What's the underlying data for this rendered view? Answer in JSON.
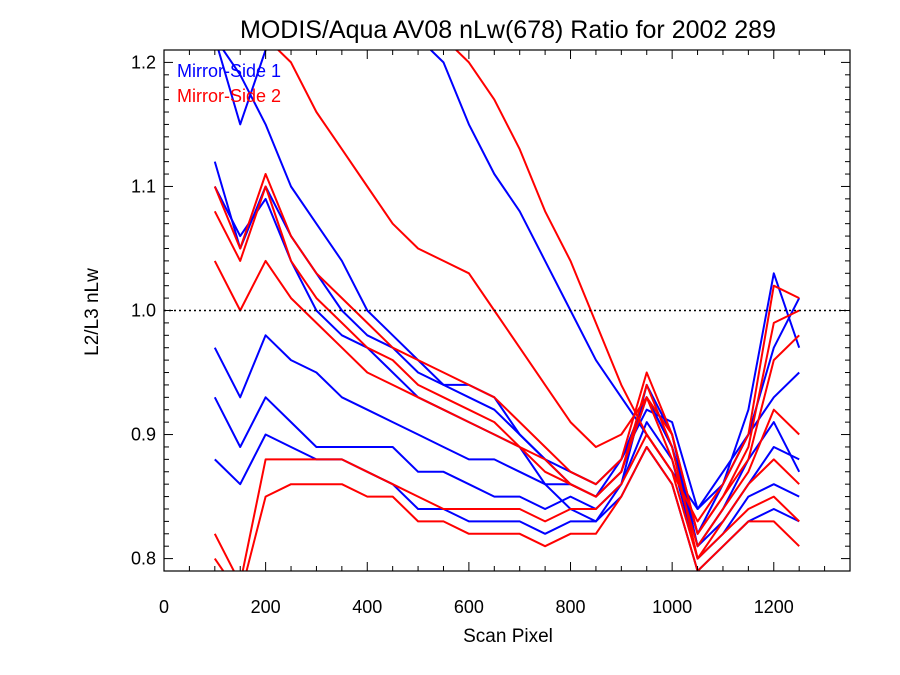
{
  "chart_data": {
    "type": "line",
    "title": "MODIS/Aqua AV08 nLw(678) Ratio for 2002 289",
    "xlabel": "Scan Pixel",
    "ylabel": "L2/L3 nLw",
    "xlim": [
      0,
      1350
    ],
    "ylim": [
      0.79,
      1.21
    ],
    "xticks": [
      0,
      200,
      400,
      600,
      800,
      1000,
      1200
    ],
    "yticks": [
      0.8,
      0.9,
      1.0,
      1.1,
      1.2
    ],
    "xtick_labels": [
      "0",
      "200",
      "400",
      "600",
      "800",
      "1000",
      "1200"
    ],
    "ytick_labels": [
      "0.8",
      "0.9",
      "1.0",
      "1.1",
      "1.2"
    ],
    "reference_line": 1.0,
    "grid": false,
    "legend_position": "top-left",
    "series": [
      {
        "name": "Mirror-Side 1",
        "color": "#0000ff",
        "lines": [
          {
            "x": [
              100,
              150,
              200,
              250,
              300,
              350,
              400,
              450,
              500,
              550,
              600,
              650,
              700,
              750,
              800,
              850,
              900,
              950,
              1000,
              1050,
              1100,
              1150,
              1200,
              1250
            ],
            "y": [
              1.22,
              1.15,
              1.21,
              1.22,
              1.22,
              1.22,
              1.22,
              1.22,
              1.22,
              1.2,
              1.15,
              1.11,
              1.08,
              1.04,
              1.0,
              0.96,
              0.93,
              0.9,
              0.87,
              0.84,
              0.86,
              0.92,
              1.03,
              0.97
            ]
          },
          {
            "x": [
              100,
              150,
              200,
              250,
              300,
              350,
              400,
              450,
              500,
              550,
              600,
              650,
              700,
              750,
              800,
              850,
              900,
              950,
              1000,
              1050,
              1100,
              1150,
              1200,
              1250
            ],
            "y": [
              1.22,
              1.19,
              1.15,
              1.1,
              1.07,
              1.04,
              1.0,
              0.98,
              0.96,
              0.94,
              0.93,
              0.92,
              0.9,
              0.88,
              0.87,
              0.86,
              0.88,
              0.92,
              0.91,
              0.84,
              0.87,
              0.9,
              0.97,
              1.01
            ]
          },
          {
            "x": [
              100,
              150,
              200,
              250,
              300,
              350,
              400,
              450,
              500,
              550,
              600,
              650,
              700,
              750,
              800,
              850,
              900,
              950,
              1000,
              1050,
              1100,
              1150,
              1200,
              1250
            ],
            "y": [
              1.12,
              1.05,
              1.1,
              1.06,
              1.03,
              1.0,
              0.98,
              0.97,
              0.95,
              0.94,
              0.94,
              0.93,
              0.9,
              0.88,
              0.86,
              0.85,
              0.88,
              0.93,
              0.89,
              0.82,
              0.86,
              0.9,
              0.93,
              0.95
            ]
          },
          {
            "x": [
              100,
              150,
              200,
              250,
              300,
              350,
              400,
              450,
              500,
              550,
              600,
              650,
              700,
              750,
              800,
              850,
              900,
              950,
              1000,
              1050,
              1100,
              1150,
              1200,
              1250
            ],
            "y": [
              1.1,
              1.06,
              1.09,
              1.04,
              1.0,
              0.98,
              0.97,
              0.95,
              0.93,
              0.92,
              0.91,
              0.9,
              0.89,
              0.86,
              0.84,
              0.83,
              0.86,
              0.94,
              0.9,
              0.81,
              0.84,
              0.88,
              0.91,
              0.87
            ]
          },
          {
            "x": [
              100,
              150,
              200,
              250,
              300,
              350,
              400,
              450,
              500,
              550,
              600,
              650,
              700,
              750,
              800,
              850,
              900,
              950,
              1000,
              1050,
              1100,
              1150,
              1200,
              1250
            ],
            "y": [
              0.97,
              0.93,
              0.98,
              0.96,
              0.95,
              0.93,
              0.92,
              0.91,
              0.9,
              0.89,
              0.88,
              0.88,
              0.87,
              0.86,
              0.86,
              0.85,
              0.87,
              0.93,
              0.89,
              0.81,
              0.83,
              0.86,
              0.89,
              0.88
            ]
          },
          {
            "x": [
              100,
              150,
              200,
              250,
              300,
              350,
              400,
              450,
              500,
              550,
              600,
              650,
              700,
              750,
              800,
              850,
              900,
              950,
              1000,
              1050,
              1100,
              1150,
              1200,
              1250
            ],
            "y": [
              0.93,
              0.89,
              0.93,
              0.91,
              0.89,
              0.89,
              0.89,
              0.89,
              0.87,
              0.87,
              0.86,
              0.85,
              0.85,
              0.84,
              0.85,
              0.84,
              0.86,
              0.91,
              0.88,
              0.8,
              0.82,
              0.85,
              0.86,
              0.85
            ]
          },
          {
            "x": [
              100,
              150,
              200,
              250,
              300,
              350,
              400,
              450,
              500,
              550,
              600,
              650,
              700,
              750,
              800,
              850,
              900,
              950,
              1000,
              1050,
              1100,
              1150,
              1200,
              1250
            ],
            "y": [
              0.88,
              0.86,
              0.9,
              0.89,
              0.88,
              0.88,
              0.87,
              0.86,
              0.84,
              0.84,
              0.83,
              0.83,
              0.83,
              0.82,
              0.83,
              0.83,
              0.85,
              0.89,
              0.86,
              0.79,
              0.81,
              0.83,
              0.84,
              0.83
            ]
          }
        ]
      },
      {
        "name": "Mirror-Side 2",
        "color": "#ff0000",
        "lines": [
          {
            "x": [
              100,
              150,
              200,
              250,
              300,
              350,
              400,
              450,
              500,
              550,
              600,
              650,
              700,
              750,
              800,
              850,
              900,
              950,
              1000,
              1050,
              1100,
              1150,
              1200,
              1250
            ],
            "y": [
              1.22,
              1.22,
              1.22,
              1.22,
              1.22,
              1.22,
              1.22,
              1.22,
              1.22,
              1.22,
              1.2,
              1.17,
              1.13,
              1.08,
              1.04,
              0.99,
              0.94,
              0.9,
              0.87,
              0.83,
              0.86,
              0.9,
              1.02,
              1.01
            ]
          },
          {
            "x": [
              100,
              150,
              200,
              250,
              300,
              350,
              400,
              450,
              500,
              550,
              600,
              650,
              700,
              750,
              800,
              850,
              900,
              950,
              1000,
              1050,
              1100,
              1150,
              1200,
              1250
            ],
            "y": [
              1.22,
              1.22,
              1.22,
              1.2,
              1.16,
              1.13,
              1.1,
              1.07,
              1.05,
              1.04,
              1.03,
              1.0,
              0.97,
              0.94,
              0.91,
              0.89,
              0.9,
              0.93,
              0.9,
              0.82,
              0.85,
              0.89,
              0.99,
              1.0
            ]
          },
          {
            "x": [
              100,
              150,
              200,
              250,
              300,
              350,
              400,
              450,
              500,
              550,
              600,
              650,
              700,
              750,
              800,
              850,
              900,
              950,
              1000,
              1050,
              1100,
              1150,
              1200,
              1250
            ],
            "y": [
              1.1,
              1.05,
              1.11,
              1.06,
              1.03,
              1.01,
              0.99,
              0.97,
              0.96,
              0.95,
              0.94,
              0.93,
              0.91,
              0.89,
              0.87,
              0.86,
              0.88,
              0.95,
              0.9,
              0.82,
              0.85,
              0.88,
              0.96,
              0.98
            ]
          },
          {
            "x": [
              100,
              150,
              200,
              250,
              300,
              350,
              400,
              450,
              500,
              550,
              600,
              650,
              700,
              750,
              800,
              850,
              900,
              950,
              1000,
              1050,
              1100,
              1150,
              1200,
              1250
            ],
            "y": [
              1.08,
              1.04,
              1.1,
              1.04,
              1.01,
              0.99,
              0.97,
              0.96,
              0.94,
              0.93,
              0.92,
              0.91,
              0.89,
              0.88,
              0.86,
              0.85,
              0.87,
              0.93,
              0.88,
              0.81,
              0.84,
              0.87,
              0.92,
              0.9
            ]
          },
          {
            "x": [
              100,
              150,
              200,
              250,
              300,
              350,
              400,
              450,
              500,
              550,
              600,
              650,
              700,
              750,
              800,
              850,
              900,
              950,
              1000,
              1050,
              1100,
              1150,
              1200,
              1250
            ],
            "y": [
              1.04,
              1.0,
              1.04,
              1.01,
              0.99,
              0.97,
              0.95,
              0.94,
              0.93,
              0.92,
              0.91,
              0.9,
              0.89,
              0.87,
              0.86,
              0.85,
              0.87,
              0.94,
              0.89,
              0.8,
              0.83,
              0.86,
              0.88,
              0.86
            ]
          },
          {
            "x": [
              100,
              150,
              200,
              250,
              300,
              350,
              400,
              450,
              500,
              550,
              600,
              650,
              700,
              750,
              800,
              850,
              900,
              950,
              1000,
              1050,
              1100,
              1150,
              1200,
              1250
            ],
            "y": [
              0.82,
              0.78,
              0.88,
              0.88,
              0.88,
              0.88,
              0.87,
              0.86,
              0.85,
              0.84,
              0.84,
              0.84,
              0.84,
              0.83,
              0.84,
              0.84,
              0.86,
              0.9,
              0.87,
              0.8,
              0.82,
              0.84,
              0.85,
              0.83
            ]
          },
          {
            "x": [
              100,
              150,
              200,
              250,
              300,
              350,
              400,
              450,
              500,
              550,
              600,
              650,
              700,
              750,
              800,
              850,
              900,
              950,
              1000,
              1050,
              1100,
              1150,
              1200,
              1250
            ],
            "y": [
              0.8,
              0.77,
              0.85,
              0.86,
              0.86,
              0.86,
              0.85,
              0.85,
              0.83,
              0.83,
              0.82,
              0.82,
              0.82,
              0.81,
              0.82,
              0.82,
              0.85,
              0.89,
              0.86,
              0.79,
              0.81,
              0.83,
              0.83,
              0.81
            ]
          }
        ]
      }
    ]
  }
}
